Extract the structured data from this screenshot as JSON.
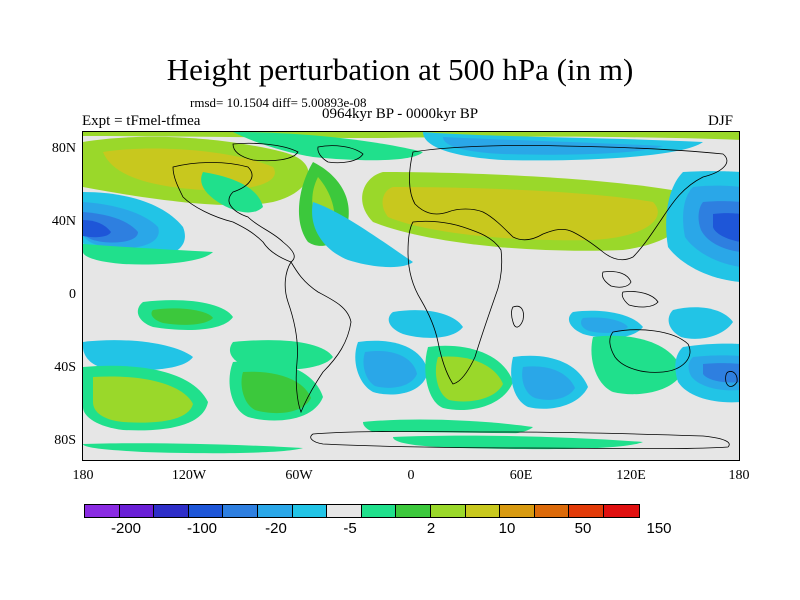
{
  "title": "Height perturbation at 500 hPa (in m)",
  "stats": "rmsd= 10.1504 diff= 5.00893e-08",
  "experiment": "Expt = tFmel-tfmea",
  "period": "0964kyr BP - 0000kyr BP",
  "season": "DJF",
  "map": {
    "lat_ticks": [
      "80N",
      "40N",
      "0",
      "40S",
      "80S"
    ],
    "lon_ticks": [
      "180",
      "120W",
      "60W",
      "0",
      "60E",
      "120E",
      "180"
    ]
  },
  "colorbar": {
    "colors": [
      "#8a2be2",
      "#6a1fd6",
      "#2e2ec8",
      "#1e56d8",
      "#2e7fe0",
      "#2aa7e8",
      "#22c4e6",
      "#e6e6e6",
      "#20e08c",
      "#3cc83c",
      "#9ad82a",
      "#c8c81e",
      "#d89a10",
      "#dc6a0a",
      "#e23a08",
      "#e01010"
    ],
    "labels": [
      "-200",
      "-100",
      "-20",
      "-5",
      "2",
      "10",
      "50",
      "150"
    ]
  }
}
